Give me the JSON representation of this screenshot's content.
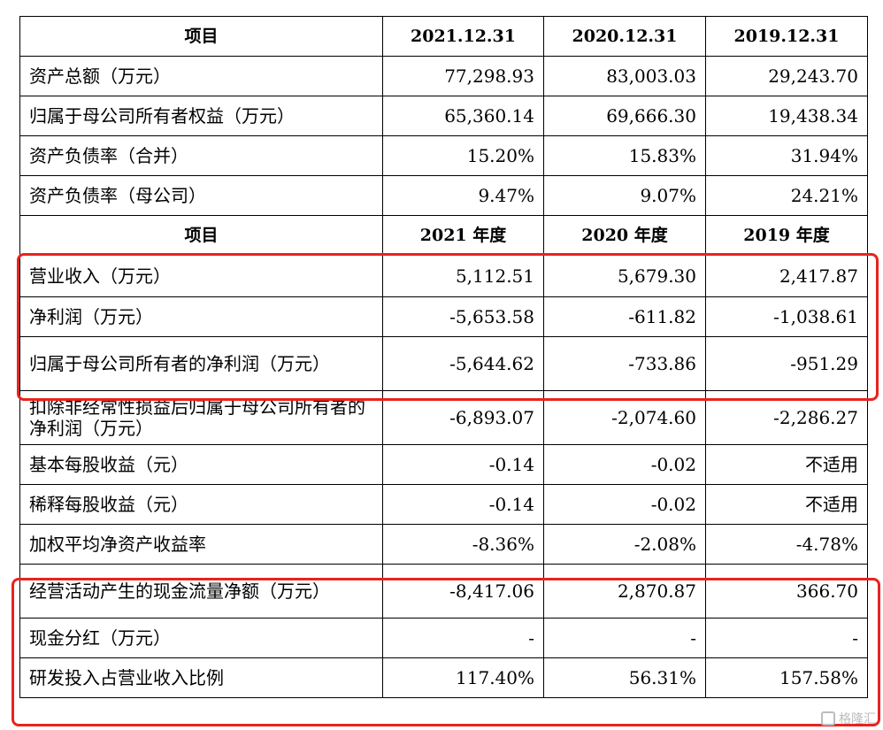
{
  "table": {
    "header1": [
      "项目",
      "2021.12.31",
      "2020.12.31",
      "2019.12.31"
    ],
    "balance_rows": [
      {
        "label": "资产总额（万元）",
        "v2021": "77,298.93",
        "v2020": "83,003.03",
        "v2019": "29,243.70"
      },
      {
        "label": "归属于母公司所有者权益（万元）",
        "v2021": "65,360.14",
        "v2020": "69,666.30",
        "v2019": "19,438.34"
      },
      {
        "label": "资产负债率（合并）",
        "v2021": "15.20%",
        "v2020": "15.83%",
        "v2019": "31.94%"
      },
      {
        "label": "资产负债率（母公司）",
        "v2021": "9.47%",
        "v2020": "9.07%",
        "v2019": "24.21%"
      }
    ],
    "header2": [
      "项目",
      "2021 年度",
      "2020 年度",
      "2019 年度"
    ],
    "income_rows": [
      {
        "label": "营业收入（万元）",
        "v2021": "5,112.51",
        "v2020": "5,679.30",
        "v2019": "2,417.87"
      },
      {
        "label": "净利润（万元）",
        "v2021": "-5,653.58",
        "v2020": "-611.82",
        "v2019": "-1,038.61"
      },
      {
        "label": "归属于母公司所有者的净利润（万元）",
        "v2021": "-5,644.62",
        "v2020": "-733.86",
        "v2019": "-951.29"
      },
      {
        "label": "扣除非经常性损益后归属于母公司所有者的净利润（万元）",
        "v2021": "-6,893.07",
        "v2020": "-2,074.60",
        "v2019": "-2,286.27"
      },
      {
        "label": "基本每股收益（元）",
        "v2021": "-0.14",
        "v2020": "-0.02",
        "v2019": "不适用"
      },
      {
        "label": "稀释每股收益（元）",
        "v2021": "-0.14",
        "v2020": "-0.02",
        "v2019": "不适用"
      },
      {
        "label": "加权平均净资产收益率",
        "v2021": "-8.36%",
        "v2020": "-2.08%",
        "v2019": "-4.78%"
      },
      {
        "label": "经营活动产生的现金流量净额（万元）",
        "v2021": "-8,417.06",
        "v2020": "2,870.87",
        "v2019": "366.70"
      },
      {
        "label": "现金分红（万元）",
        "v2021": "-",
        "v2020": "-",
        "v2019": "-"
      },
      {
        "label": "研发投入占营业收入比例",
        "v2021": "117.40%",
        "v2020": "56.31%",
        "v2019": "157.58%"
      }
    ]
  },
  "watermark": {
    "text": "格隆汇",
    "icon": "gelonghui-logo-icon"
  },
  "colors": {
    "highlight": "#e8231f",
    "watermark": "#bdbdbd"
  }
}
